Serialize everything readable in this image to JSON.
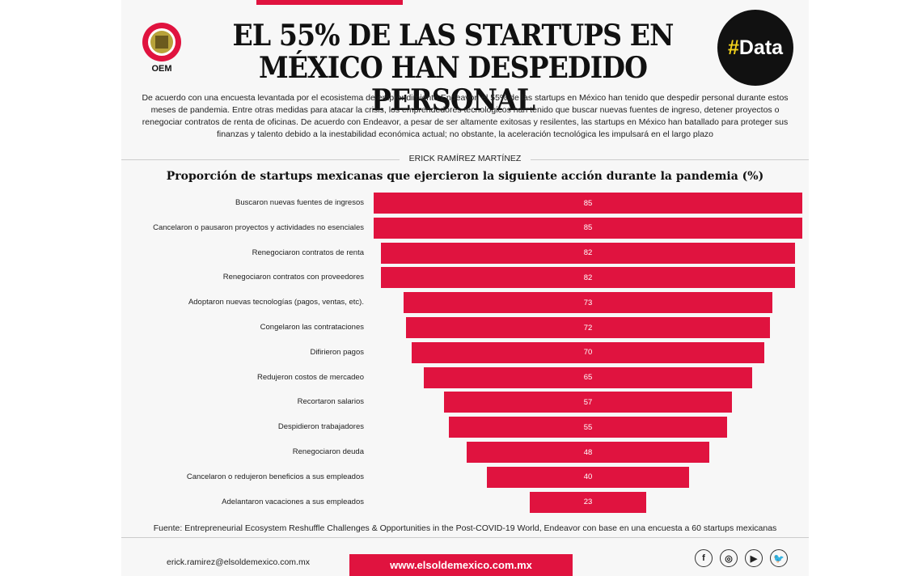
{
  "header": {
    "title_line1": "EL 55% DE LAS STARTUPS EN",
    "title_line2": "MÉXICO HAN DESPEDIDO PERSONAL",
    "logo_text": "OEM",
    "badge_hash": "#",
    "badge_word": "Data"
  },
  "intro": "De acuerdo con una encuesta levantada por el ecosistema de emprendimiento Endeavor, el 55% de las startups en México han tenido que despedir personal durante estos meses de pandemia. Entre otras medidas para atacar la crisis, los emprendedores tecnológicos han tenido que buscar nuevas fuentes de ingreso, detener proyectos o renegociar contratos de renta de oficinas. De acuerdo con Endeavor, a pesar de ser altamente exitosas y resilentes, las startups en México han batallado para proteger sus finanzas y talento debido a la inestabilidad económica actual; no obstante, la aceleración tecnológica les impulsará en el largo plazo",
  "byline": "ERICK RAMÍREZ MARTÍNEZ",
  "chart_data": {
    "type": "bar",
    "orientation": "horizontal",
    "title": "Proporción de startups mexicanas que ejercieron la siguiente acción durante la pandemia (%)",
    "categories": [
      "Buscaron nuevas fuentes de ingresos",
      "Cancelaron o pausaron proyectos y actividades no esenciales",
      "Renegociaron contratos de renta",
      "Renegociaron contratos con proveedores",
      "Adoptaron nuevas tecnologías (pagos, ventas, etc).",
      "Congelaron las contrataciones",
      "Difirieron pagos",
      "Redujeron costos de mercadeo",
      "Recortaron salarios",
      "Despidieron trabajadores",
      "Renegociaron deuda",
      "Cancelaron o redujeron beneficios a sus empleados",
      "Adelantaron vacaciones a sus empleados"
    ],
    "values": [
      85,
      85,
      82,
      82,
      73,
      72,
      70,
      65,
      57,
      55,
      48,
      40,
      23
    ],
    "color": "#e0133f"
  },
  "source": "Fuente: Entrepreneurial Ecosystem Reshuffle Challenges & Opportunities in the Post-COVID-19 World, Endeavor con base en una encuesta a 60 startups mexicanas",
  "footer": {
    "email": "erick.ramirez@elsoldemexico.com.mx",
    "website": "www.elsoldemexico.com.mx",
    "social": [
      {
        "icon": "facebook-icon",
        "glyph": "f"
      },
      {
        "icon": "instagram-icon",
        "glyph": "◎"
      },
      {
        "icon": "youtube-icon",
        "glyph": "▶"
      },
      {
        "icon": "twitter-icon",
        "glyph": "🐦"
      }
    ]
  }
}
